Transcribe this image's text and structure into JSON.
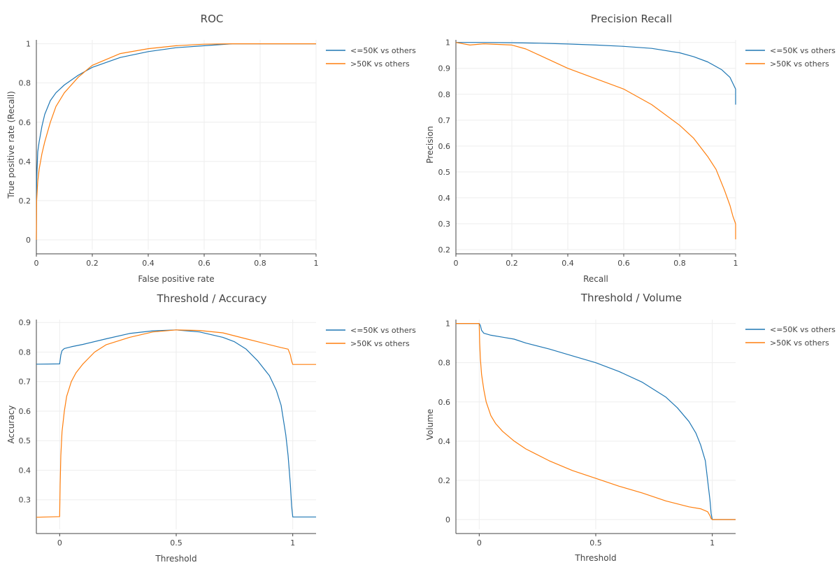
{
  "colors": {
    "series1": "#1f77b4",
    "series2": "#ff7f0e",
    "grid": "#eeeeee",
    "axis": "#444444",
    "text": "#444444"
  },
  "chart_data": [
    {
      "id": "roc",
      "type": "line",
      "title": "ROC",
      "xlabel": "False positive rate",
      "ylabel": "True positive rate (Recall)",
      "xlim": [
        0,
        1
      ],
      "ylim": [
        -0.05,
        1.02
      ],
      "xticks": [
        0,
        0.2,
        0.4,
        0.6,
        0.8,
        1
      ],
      "xtick_labels": [
        "0",
        "0.2",
        "0.4",
        "0.6",
        "0.8",
        "1"
      ],
      "yticks": [
        0,
        0.2,
        0.4,
        0.6,
        0.8,
        1
      ],
      "ytick_labels": [
        "0",
        "0.2",
        "0.4",
        "0.6",
        "0.8",
        "1"
      ],
      "legend_position": "top-right, outside",
      "series": [
        {
          "name": "<=50K vs others",
          "x": [
            0,
            0.001,
            0.005,
            0.01,
            0.02,
            0.03,
            0.05,
            0.07,
            0.1,
            0.15,
            0.2,
            0.3,
            0.4,
            0.5,
            0.6,
            0.7,
            0.8,
            0.9,
            1
          ],
          "y": [
            0,
            0.3,
            0.45,
            0.5,
            0.58,
            0.64,
            0.71,
            0.75,
            0.79,
            0.84,
            0.88,
            0.93,
            0.96,
            0.98,
            0.99,
            1.0,
            1.0,
            1.0,
            1.0
          ]
        },
        {
          "name": ">50K vs others",
          "x": [
            0,
            0.001,
            0.005,
            0.01,
            0.02,
            0.03,
            0.05,
            0.07,
            0.1,
            0.15,
            0.2,
            0.3,
            0.4,
            0.5,
            0.6,
            0.7,
            0.8,
            0.9,
            1
          ],
          "y": [
            0,
            0.2,
            0.3,
            0.36,
            0.44,
            0.5,
            0.6,
            0.68,
            0.75,
            0.83,
            0.89,
            0.95,
            0.975,
            0.99,
            0.998,
            1.0,
            1.0,
            1.0,
            1.0
          ]
        }
      ]
    },
    {
      "id": "pr",
      "type": "line",
      "title": "Precision Recall",
      "xlabel": "Recall",
      "ylabel": "Precision",
      "xlim": [
        0,
        1
      ],
      "ylim": [
        0.2,
        1.01
      ],
      "xticks": [
        0,
        0.2,
        0.4,
        0.6,
        0.8,
        1
      ],
      "xtick_labels": [
        "0",
        "0.2",
        "0.4",
        "0.6",
        "0.8",
        "1"
      ],
      "yticks": [
        0.2,
        0.3,
        0.4,
        0.5,
        0.6,
        0.7,
        0.8,
        0.9,
        1
      ],
      "ytick_labels": [
        "0.2",
        "0.3",
        "0.4",
        "0.5",
        "0.6",
        "0.7",
        "0.8",
        "0.9",
        "1"
      ],
      "legend_position": "top-right, outside",
      "series": [
        {
          "name": "<=50K vs others",
          "x": [
            0,
            0.1,
            0.2,
            0.3,
            0.4,
            0.5,
            0.6,
            0.7,
            0.8,
            0.85,
            0.9,
            0.95,
            0.98,
            1,
            1
          ],
          "y": [
            1.0,
            1.0,
            0.999,
            0.997,
            0.994,
            0.99,
            0.985,
            0.977,
            0.96,
            0.945,
            0.925,
            0.895,
            0.865,
            0.82,
            0.76
          ]
        },
        {
          "name": ">50K vs others",
          "x": [
            0,
            0.05,
            0.1,
            0.2,
            0.25,
            0.3,
            0.4,
            0.5,
            0.6,
            0.7,
            0.8,
            0.85,
            0.9,
            0.93,
            0.96,
            0.98,
            0.99,
            1,
            1
          ],
          "y": [
            1.0,
            0.99,
            0.995,
            0.99,
            0.975,
            0.95,
            0.9,
            0.86,
            0.82,
            0.76,
            0.68,
            0.63,
            0.56,
            0.51,
            0.43,
            0.37,
            0.33,
            0.3,
            0.24
          ]
        }
      ]
    },
    {
      "id": "acc",
      "type": "line",
      "title": "Threshold / Accuracy",
      "xlabel": "Threshold",
      "ylabel": "Accuracy",
      "xlim": [
        -0.1,
        1.1
      ],
      "ylim": [
        0.2,
        0.91
      ],
      "xticks": [
        0,
        0.5,
        1
      ],
      "xtick_labels": [
        "0",
        "0.5",
        "1"
      ],
      "yticks": [
        0.3,
        0.4,
        0.5,
        0.6,
        0.7,
        0.8,
        0.9
      ],
      "ytick_labels": [
        "0.3",
        "0.4",
        "0.5",
        "0.6",
        "0.7",
        "0.8",
        "0.9"
      ],
      "legend_position": "top-right, outside",
      "series": [
        {
          "name": "<=50K vs others",
          "x": [
            -0.1,
            0,
            0.005,
            0.01,
            0.02,
            0.05,
            0.1,
            0.2,
            0.3,
            0.4,
            0.5,
            0.6,
            0.7,
            0.75,
            0.8,
            0.85,
            0.9,
            0.93,
            0.95,
            0.97,
            0.98,
            0.99,
            0.995,
            1.0,
            1.1
          ],
          "y": [
            0.759,
            0.76,
            0.79,
            0.805,
            0.812,
            0.818,
            0.826,
            0.845,
            0.863,
            0.872,
            0.875,
            0.868,
            0.85,
            0.835,
            0.81,
            0.77,
            0.72,
            0.67,
            0.62,
            0.52,
            0.45,
            0.35,
            0.28,
            0.242,
            0.242
          ]
        },
        {
          "name": ">50K vs others",
          "x": [
            -0.1,
            0,
            0.002,
            0.005,
            0.01,
            0.02,
            0.03,
            0.05,
            0.07,
            0.1,
            0.15,
            0.2,
            0.3,
            0.4,
            0.5,
            0.6,
            0.7,
            0.8,
            0.9,
            0.95,
            0.98,
            0.99,
            0.995,
            1.0,
            1.1
          ],
          "y": [
            0.241,
            0.243,
            0.35,
            0.45,
            0.53,
            0.6,
            0.65,
            0.7,
            0.73,
            0.76,
            0.8,
            0.825,
            0.85,
            0.868,
            0.875,
            0.873,
            0.865,
            0.845,
            0.825,
            0.815,
            0.81,
            0.79,
            0.77,
            0.758,
            0.758
          ]
        }
      ]
    },
    {
      "id": "vol",
      "type": "line",
      "title": "Threshold / Volume",
      "xlabel": "Threshold",
      "ylabel": "Volume",
      "xlim": [
        -0.1,
        1.1
      ],
      "ylim": [
        -0.05,
        1.02
      ],
      "xticks": [
        0,
        0.5,
        1
      ],
      "xtick_labels": [
        "0",
        "0.5",
        "1"
      ],
      "yticks": [
        0,
        0.2,
        0.4,
        0.6,
        0.8,
        1
      ],
      "ytick_labels": [
        "0",
        "0.2",
        "0.4",
        "0.6",
        "0.8",
        "1"
      ],
      "legend_position": "top-right, outside",
      "series": [
        {
          "name": "<=50K vs others",
          "x": [
            -0.1,
            0,
            0.005,
            0.01,
            0.02,
            0.05,
            0.1,
            0.15,
            0.2,
            0.3,
            0.4,
            0.5,
            0.6,
            0.7,
            0.8,
            0.85,
            0.9,
            0.93,
            0.95,
            0.97,
            0.98,
            0.99,
            0.995,
            1.0,
            1.1
          ],
          "y": [
            1.0,
            1.0,
            0.99,
            0.965,
            0.95,
            0.94,
            0.93,
            0.92,
            0.9,
            0.87,
            0.835,
            0.8,
            0.755,
            0.7,
            0.625,
            0.57,
            0.5,
            0.44,
            0.38,
            0.3,
            0.2,
            0.1,
            0.03,
            0.0,
            0.0
          ]
        },
        {
          "name": ">50K vs others",
          "x": [
            -0.1,
            0,
            0.002,
            0.005,
            0.01,
            0.02,
            0.03,
            0.05,
            0.07,
            0.1,
            0.15,
            0.2,
            0.3,
            0.4,
            0.5,
            0.6,
            0.7,
            0.8,
            0.9,
            0.95,
            0.98,
            0.99,
            0.995,
            1.0,
            1.1
          ],
          "y": [
            1.0,
            1.0,
            0.9,
            0.82,
            0.74,
            0.66,
            0.6,
            0.53,
            0.49,
            0.45,
            0.4,
            0.36,
            0.3,
            0.25,
            0.21,
            0.17,
            0.135,
            0.095,
            0.065,
            0.055,
            0.04,
            0.02,
            0.005,
            0.0,
            0.0
          ]
        }
      ]
    }
  ]
}
